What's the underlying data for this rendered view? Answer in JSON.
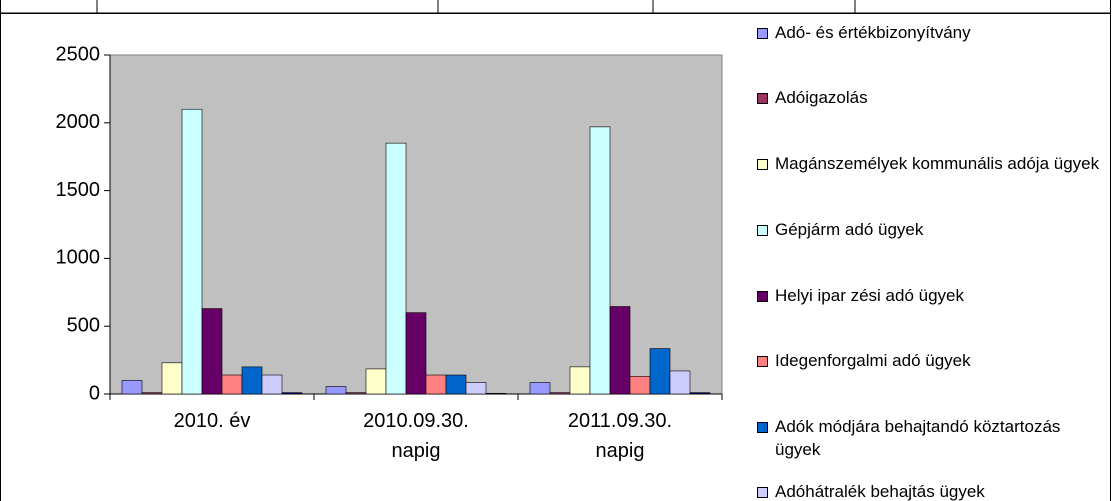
{
  "chart_data": {
    "type": "bar",
    "categories": [
      "2010. év",
      "2010.09.30. napig",
      "2011.09.30. napig"
    ],
    "series": [
      {
        "name": "Adó- és értékbizonyítvány",
        "color": "#9999ff",
        "values": [
          100,
          55,
          85
        ]
      },
      {
        "name": "Adóigazolás",
        "color": "#993366",
        "values": [
          10,
          10,
          10
        ]
      },
      {
        "name": "Magánszemélyek kommunális adója ügyek",
        "color": "#ffffcc",
        "values": [
          230,
          185,
          200
        ]
      },
      {
        "name": "Gépjárm adó ügyek",
        "color": "#ccffff",
        "values": [
          2100,
          1850,
          1970
        ]
      },
      {
        "name": "Helyi ipar zési adó ügyek",
        "color": "#660066",
        "values": [
          630,
          600,
          645
        ]
      },
      {
        "name": "Idegenforgalmi adó ügyek",
        "color": "#ff8080",
        "values": [
          140,
          140,
          130
        ]
      },
      {
        "name": "Adók módjára behajtandó köztartozás ügyek",
        "color": "#0066cc",
        "values": [
          200,
          140,
          335
        ]
      },
      {
        "name": "Adóhátralék behajtás ügyek",
        "color": "#ccccff",
        "values": [
          140,
          85,
          170
        ]
      },
      {
        "color": "#000080",
        "values": [
          10,
          5,
          10
        ]
      }
    ],
    "ylim": [
      0,
      2500
    ],
    "yticks": [
      0,
      500,
      1000,
      1500,
      2000,
      2500
    ],
    "grid": false,
    "legend": "right"
  }
}
